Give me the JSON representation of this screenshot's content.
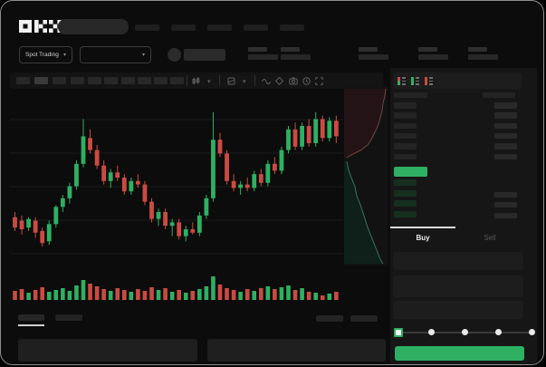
{
  "app": {
    "name": "OKX",
    "logo": "OKX"
  },
  "colors": {
    "green": "#2eb062",
    "red": "#ca4b43",
    "depth_ask_fill": "#241316",
    "depth_ask_line": "#6f4742",
    "depth_bid_fill": "#0e2019",
    "depth_bid_line": "#3c7263",
    "bid_row_bar": "#15301f",
    "ob_bar": "#242424",
    "ob_bar_right": "#292929",
    "grid": "#1d1d1d",
    "tab_underline": "#dcdcdc"
  },
  "header": {
    "nav_placeholder_count": 5,
    "search": {
      "placeholder": ""
    }
  },
  "ticker": {
    "market_selector_label": "Spot Trading",
    "pair_selector_label": "",
    "stat_group_count": 5
  },
  "chart_toolbar": {
    "interval_count": 10,
    "active_interval_index": 1,
    "icons": [
      "candle-type",
      "chevron-down",
      "overlay-type",
      "chevron-down",
      "wave",
      "indicators",
      "camera",
      "clock",
      "fullscreen"
    ]
  },
  "chart_data": {
    "type": "candlestick",
    "title": "",
    "xlabel": "",
    "ylabel": "",
    "axis_labels_visible": false,
    "note": "values estimated on relative 0-100 price scale; no numeric axis shown in pixels",
    "candles_ohlc": [
      [
        27,
        30,
        19,
        21
      ],
      [
        25,
        28,
        17,
        20
      ],
      [
        21,
        27,
        19,
        26
      ],
      [
        25,
        27,
        15,
        18
      ],
      [
        19,
        21,
        10,
        12
      ],
      [
        13,
        25,
        11,
        23
      ],
      [
        23,
        34,
        21,
        33
      ],
      [
        33,
        40,
        30,
        38
      ],
      [
        38,
        47,
        35,
        45
      ],
      [
        45,
        60,
        43,
        58
      ],
      [
        58,
        84,
        56,
        74
      ],
      [
        73,
        78,
        64,
        66
      ],
      [
        66,
        69,
        55,
        57
      ],
      [
        57,
        60,
        46,
        48
      ],
      [
        48,
        55,
        44,
        53
      ],
      [
        53,
        57,
        48,
        50
      ],
      [
        50,
        52,
        40,
        42
      ],
      [
        42,
        50,
        40,
        48
      ],
      [
        48,
        52,
        44,
        46
      ],
      [
        46,
        48,
        34,
        36
      ],
      [
        36,
        38,
        24,
        26
      ],
      [
        26,
        32,
        22,
        30
      ],
      [
        30,
        32,
        20,
        22
      ],
      [
        22,
        26,
        16,
        24
      ],
      [
        24,
        26,
        14,
        16
      ],
      [
        16,
        22,
        13,
        20
      ],
      [
        20,
        24,
        17,
        18
      ],
      [
        18,
        30,
        16,
        28
      ],
      [
        28,
        40,
        26,
        38
      ],
      [
        38,
        88,
        36,
        72
      ],
      [
        72,
        76,
        62,
        64
      ],
      [
        64,
        66,
        46,
        48
      ],
      [
        48,
        52,
        42,
        44
      ],
      [
        44,
        48,
        40,
        46
      ],
      [
        46,
        50,
        42,
        44
      ],
      [
        44,
        54,
        42,
        52
      ],
      [
        52,
        55,
        45,
        47
      ],
      [
        47,
        60,
        45,
        58
      ],
      [
        58,
        62,
        52,
        54
      ],
      [
        54,
        68,
        52,
        66
      ],
      [
        66,
        80,
        64,
        78
      ],
      [
        78,
        82,
        66,
        68
      ],
      [
        68,
        82,
        66,
        80
      ],
      [
        80,
        84,
        68,
        70
      ],
      [
        70,
        88,
        68,
        84
      ],
      [
        84,
        86,
        71,
        73
      ],
      [
        73,
        85,
        71,
        83
      ],
      [
        83,
        86,
        70,
        74
      ]
    ],
    "volume": [
      10,
      12,
      8,
      11,
      14,
      9,
      11,
      13,
      10,
      16,
      22,
      18,
      15,
      12,
      10,
      13,
      11,
      9,
      12,
      10,
      14,
      11,
      13,
      9,
      11,
      8,
      10,
      12,
      15,
      26,
      17,
      13,
      11,
      9,
      12,
      10,
      13,
      15,
      12,
      14,
      16,
      11,
      13,
      9,
      8,
      5,
      7,
      9
    ],
    "gridlines_y_relative": [
      31,
      68,
      105,
      142,
      179
    ],
    "grid_on": true
  },
  "depth_chart": {
    "type": "area",
    "ask_line_points": [
      [
        46,
        2
      ],
      [
        45,
        10
      ],
      [
        43,
        18
      ],
      [
        42,
        26
      ],
      [
        40,
        34
      ],
      [
        37,
        44
      ],
      [
        33,
        52
      ],
      [
        30,
        58
      ],
      [
        26,
        64
      ],
      [
        18,
        70
      ],
      [
        8,
        75
      ],
      [
        3,
        78
      ]
    ],
    "bid_line_points": [
      [
        3,
        82
      ],
      [
        5,
        92
      ],
      [
        8,
        100
      ],
      [
        12,
        110
      ],
      [
        14,
        120
      ],
      [
        18,
        130
      ],
      [
        22,
        142
      ],
      [
        25,
        152
      ],
      [
        28,
        160
      ],
      [
        32,
        170
      ],
      [
        36,
        180
      ],
      [
        40,
        190
      ],
      [
        43,
        195
      ]
    ]
  },
  "orderbook": {
    "view_icons": [
      "book-combined",
      "book-bids-only",
      "book-asks-only"
    ],
    "header_placeholder": true,
    "ask_row_count": 6,
    "bid_row_count": 4,
    "last_price_highlighted": true
  },
  "trade_panel": {
    "tabs": [
      {
        "label": "Buy",
        "active": true
      },
      {
        "label": "Sell",
        "active": false
      }
    ],
    "field_count": 3,
    "slider": {
      "steps": 5,
      "active_step": 0
    },
    "submit_button_label": ""
  },
  "bottom_section": {
    "tab_count": 2,
    "active_tab_index": 0,
    "right_mini_placeholder_count": 2,
    "panel_count": 2
  }
}
